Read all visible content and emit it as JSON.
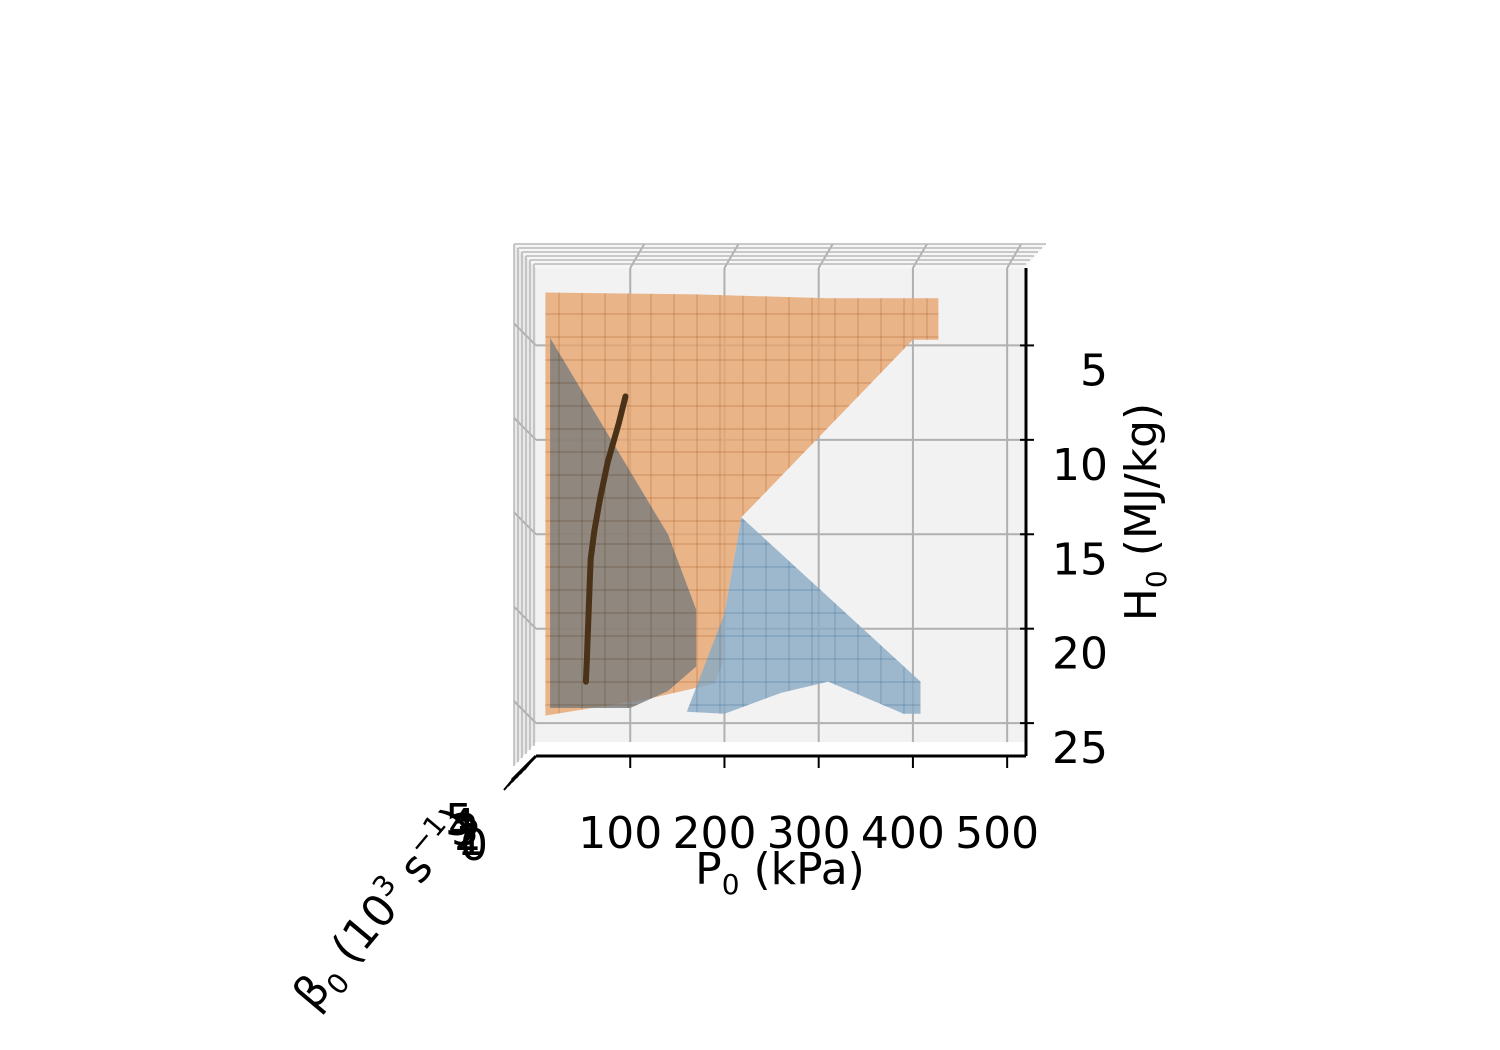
{
  "chart_data": {
    "type": "surface3d",
    "x_axis": {
      "label_main": "P",
      "label_sub": "0",
      "label_unit": " (kPa)",
      "ticks": [
        100,
        200,
        300,
        400,
        500
      ],
      "range": [
        0,
        520
      ]
    },
    "z_axis": {
      "label_main": "H",
      "label_sub": "0",
      "label_unit": " (MJ/kg)",
      "ticks": [
        5,
        10,
        15,
        20,
        25
      ],
      "range": [
        0.9,
        26
      ]
    },
    "y_axis": {
      "label_main": "β",
      "label_sub": "0",
      "label_mid": " (10",
      "label_sup": "3",
      "label_unit": " s",
      "label_sup2": "−1",
      "label_end": ")",
      "tick_labels": [
        "0",
        "1",
        "2",
        "3",
        "4",
        "5"
      ]
    },
    "grid": true,
    "series": [
      {
        "kind": "surface",
        "color": "#e8a672",
        "edge_color": "#a4581c",
        "outline": [
          [
            10,
            2.2
          ],
          [
            170,
            2.3
          ],
          [
            310,
            2.5
          ],
          [
            408,
            2.5
          ],
          [
            427,
            2.5
          ],
          [
            427,
            4.7
          ],
          [
            400,
            4.7
          ],
          [
            218,
            14.1
          ],
          [
            200,
            19.2
          ],
          [
            198,
            21.8
          ],
          [
            192,
            22.6
          ],
          [
            190,
            22.9
          ],
          [
            120,
            23.7
          ],
          [
            10,
            24.6
          ]
        ]
      },
      {
        "kind": "surface",
        "color": "#8aa9c3",
        "edge_color": "#3d6f97",
        "outline": [
          [
            218,
            14.1
          ],
          [
            408,
            22.8
          ],
          [
            408,
            24.5
          ],
          [
            390,
            24.5
          ],
          [
            310,
            22.8
          ],
          [
            260,
            23.4
          ],
          [
            200,
            24.5
          ],
          [
            160,
            24.4
          ],
          [
            200,
            19.2
          ]
        ]
      },
      {
        "kind": "surface",
        "color": "#7d7d7d",
        "edge_color": "#5d4c33",
        "outline": [
          [
            15,
            4.6
          ],
          [
            140,
            15.0
          ],
          [
            170,
            19.0
          ],
          [
            170,
            22.0
          ],
          [
            140,
            23.3
          ],
          [
            100,
            24.2
          ],
          [
            15,
            24.2
          ]
        ]
      },
      {
        "kind": "line",
        "color": "#4a3218",
        "x": [
          95,
          88,
          76,
          68,
          62,
          58,
          57,
          56,
          55,
          54,
          53
        ],
        "y": [
          7.7,
          9.1,
          11.2,
          13.1,
          14.8,
          16.3,
          17.6,
          18.9,
          20.3,
          21.6,
          22.8
        ]
      }
    ]
  }
}
